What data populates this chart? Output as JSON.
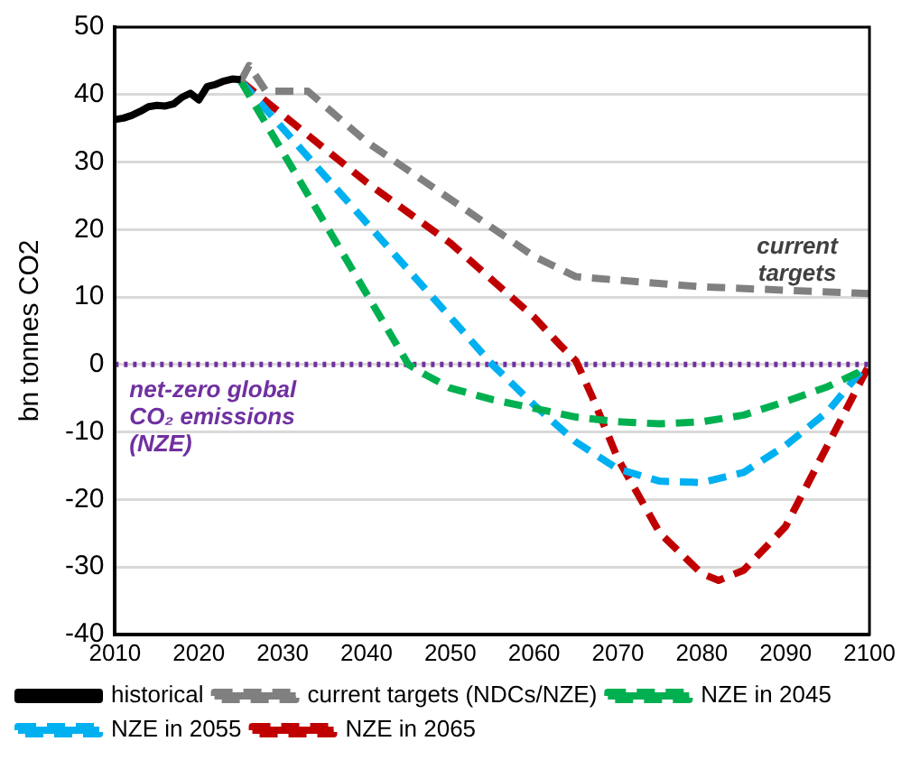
{
  "chart_data": {
    "type": "line",
    "ylabel": "bn tonnes CO2",
    "xlim": [
      2010,
      2100
    ],
    "xticks": [
      2010,
      2020,
      2030,
      2040,
      2050,
      2060,
      2070,
      2080,
      2090,
      2100
    ],
    "ylim": [
      -40,
      50
    ],
    "yticks": [
      -40,
      -30,
      -20,
      -10,
      0,
      10,
      20,
      30,
      40,
      50
    ],
    "grid": "y",
    "legend": "bottom",
    "marker": "none",
    "series": [
      {
        "name": "historical",
        "color": "#000000",
        "line_style": "solid",
        "x": [
          2010,
          2011,
          2012,
          2013,
          2014,
          2015,
          2016,
          2017,
          2018,
          2019,
          2020,
          2021,
          2022,
          2023,
          2024,
          2025
        ],
        "values": [
          36.3,
          36.5,
          36.9,
          37.5,
          38.2,
          38.4,
          38.3,
          38.6,
          39.6,
          40.2,
          39.2,
          41.2,
          41.5,
          42,
          42.3,
          42.2
        ]
      },
      {
        "name": "current targets (NDCs/NZE)",
        "color": "#808080",
        "line_style": "dashed",
        "x": [
          2025,
          2026,
          2028,
          2033,
          2040,
          2050,
          2060,
          2065,
          2070,
          2080,
          2090,
          2100
        ],
        "values": [
          42,
          44.3,
          40.5,
          40.5,
          33,
          24.5,
          16,
          13,
          12.5,
          11.5,
          11,
          10.5
        ]
      },
      {
        "name": "NZE in 2045",
        "color": "#00b050",
        "line_style": "dashed",
        "x": [
          2025,
          2045,
          2047,
          2050,
          2055,
          2060,
          2065,
          2070,
          2075,
          2080,
          2085,
          2090,
          2095,
          2099
        ],
        "values": [
          42,
          0,
          -1.5,
          -3.5,
          -5.2,
          -6.5,
          -7.8,
          -8.5,
          -8.8,
          -8.5,
          -7.5,
          -5.5,
          -3.3,
          -1
        ]
      },
      {
        "name": "NZE in 2055",
        "color": "#00b0f0",
        "line_style": "dashed",
        "x": [
          2025,
          2055,
          2060,
          2065,
          2070,
          2075,
          2080,
          2085,
          2090,
          2095,
          2099
        ],
        "values": [
          42,
          0,
          -6,
          -11.5,
          -15.5,
          -17.3,
          -17.5,
          -16,
          -12,
          -7,
          -1
        ]
      },
      {
        "name": "NZE in 2065",
        "color": "#c00000",
        "line_style": "dashed",
        "x": [
          2025,
          2030,
          2040,
          2050,
          2060,
          2063,
          2065,
          2067,
          2070,
          2075,
          2080,
          2082,
          2085,
          2090,
          2095,
          2100
        ],
        "values": [
          42,
          37,
          27,
          18,
          7,
          3,
          0.5,
          -5,
          -14,
          -25,
          -31,
          -32,
          -30.5,
          -24,
          -12,
          0
        ]
      }
    ],
    "ref_lines": [
      {
        "axis": "y",
        "value": 0,
        "label": "net-zero global CO₂ emissions (NZE)",
        "color": "#7030a0",
        "line_style": "dotted"
      }
    ],
    "annotations": [
      "current targets"
    ]
  }
}
